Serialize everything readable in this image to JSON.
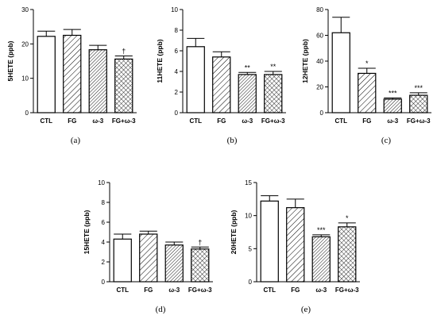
{
  "chart_data": [
    {
      "type": "bar",
      "panel_label": "(a)",
      "ylabel": "5HETE (ppb)",
      "ylim": [
        0,
        30
      ],
      "yticks": [
        0,
        10,
        20,
        30
      ],
      "categories": [
        "CTL",
        "FG",
        "ω-3",
        "FG+ω-3"
      ],
      "values": [
        22.2,
        22.5,
        18.3,
        15.6
      ],
      "errors": [
        1.5,
        1.7,
        1.3,
        0.9
      ],
      "significance": [
        "",
        "",
        "",
        "†"
      ],
      "patterns": [
        "none",
        "diag",
        "diag-dense",
        "cross"
      ]
    },
    {
      "type": "bar",
      "panel_label": "(b)",
      "ylabel": "11HETE (ppb)",
      "ylim": [
        0,
        10
      ],
      "yticks": [
        0,
        2,
        4,
        6,
        8,
        10
      ],
      "categories": [
        "CTL",
        "FG",
        "ω-3",
        "FG+ω-3"
      ],
      "values": [
        6.4,
        5.4,
        3.7,
        3.7
      ],
      "errors": [
        0.8,
        0.5,
        0.2,
        0.3
      ],
      "significance": [
        "",
        "",
        "**",
        "**"
      ],
      "patterns": [
        "none",
        "diag",
        "diag-dense",
        "cross"
      ]
    },
    {
      "type": "bar",
      "panel_label": "(c)",
      "ylabel": "12HETE (ppb)",
      "ylim": [
        0,
        80
      ],
      "yticks": [
        0,
        20,
        40,
        60,
        80
      ],
      "categories": [
        "CTL",
        "FG",
        "ω-3",
        "FG+ω-3"
      ],
      "values": [
        62,
        30.5,
        10.5,
        13.5
      ],
      "errors": [
        12,
        4,
        1,
        2
      ],
      "significance": [
        "",
        "*",
        "***",
        "***"
      ],
      "patterns": [
        "none",
        "diag",
        "diag-dense",
        "cross"
      ]
    },
    {
      "type": "bar",
      "panel_label": "(d)",
      "ylabel": "15HETE (ppb)",
      "ylim": [
        0,
        10
      ],
      "yticks": [
        0,
        2,
        4,
        6,
        8,
        10
      ],
      "categories": [
        "CTL",
        "FG",
        "ω-3",
        "FG+ω-3"
      ],
      "values": [
        4.3,
        4.8,
        3.7,
        3.3
      ],
      "errors": [
        0.5,
        0.3,
        0.3,
        0.2
      ],
      "significance": [
        "",
        "",
        "",
        "†"
      ],
      "patterns": [
        "none",
        "diag",
        "diag-dense",
        "cross"
      ]
    },
    {
      "type": "bar",
      "panel_label": "(e)",
      "ylabel": "20HETE (ppb)",
      "ylim": [
        0,
        15
      ],
      "yticks": [
        0,
        5,
        10,
        15
      ],
      "categories": [
        "CTL",
        "FG",
        "ω-3",
        "FG+ω-3"
      ],
      "values": [
        12.2,
        11.2,
        6.8,
        8.3
      ],
      "errors": [
        0.8,
        1.3,
        0.3,
        0.6
      ],
      "significance": [
        "",
        "",
        "***",
        "*"
      ],
      "patterns": [
        "none",
        "diag",
        "diag-dense",
        "cross"
      ]
    }
  ],
  "colors": {
    "bar_fill": "#ffffff",
    "stroke": "#000000",
    "sig_dagger": "#000000"
  }
}
